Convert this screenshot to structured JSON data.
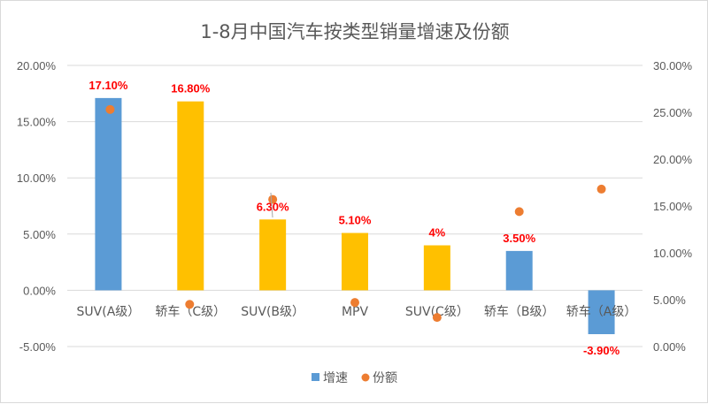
{
  "chart_data": {
    "type": "bar+scatter",
    "title": "1-8月中国汽车按类型销量增速及份额",
    "categories": [
      "SUV(A级）",
      "轿车（C级）",
      "SUV(B级）",
      "MPV",
      "SUV(C级）",
      "轿车（B级）",
      "轿车（A级）"
    ],
    "series": [
      {
        "name": "增速",
        "type": "bar",
        "axis": "left",
        "values": [
          17.1,
          16.8,
          6.3,
          5.1,
          4,
          3.5,
          -3.9
        ],
        "data_labels": [
          "17.10%",
          "16.80%",
          "6.30%",
          "5.10%",
          "4%",
          "3.50%",
          "-3.90%"
        ],
        "bar_colors": [
          "#5b9bd5",
          "#ffc000",
          "#ffc000",
          "#ffc000",
          "#ffc000",
          "#5b9bd5",
          "#5b9bd5"
        ]
      },
      {
        "name": "份额",
        "type": "scatter",
        "axis": "right",
        "values": [
          25.3,
          4.5,
          15.7,
          4.7,
          3.1,
          14.4,
          16.8
        ],
        "color": "#ed7d31"
      }
    ],
    "left_axis": {
      "range": [
        -5,
        20
      ],
      "ticks": [
        "20.00%",
        "15.00%",
        "10.00%",
        "5.00%",
        "0.00%",
        "-5.00%"
      ]
    },
    "right_axis": {
      "range": [
        0,
        30
      ],
      "ticks": [
        "30.00%",
        "25.00%",
        "20.00%",
        "15.00%",
        "10.00%",
        "5.00%",
        "0.00%"
      ]
    },
    "grid": true,
    "legend": {
      "position": "bottom",
      "items": [
        "增速",
        "份额"
      ],
      "colors": [
        "#5b9bd5",
        "#ed7d31"
      ]
    }
  }
}
